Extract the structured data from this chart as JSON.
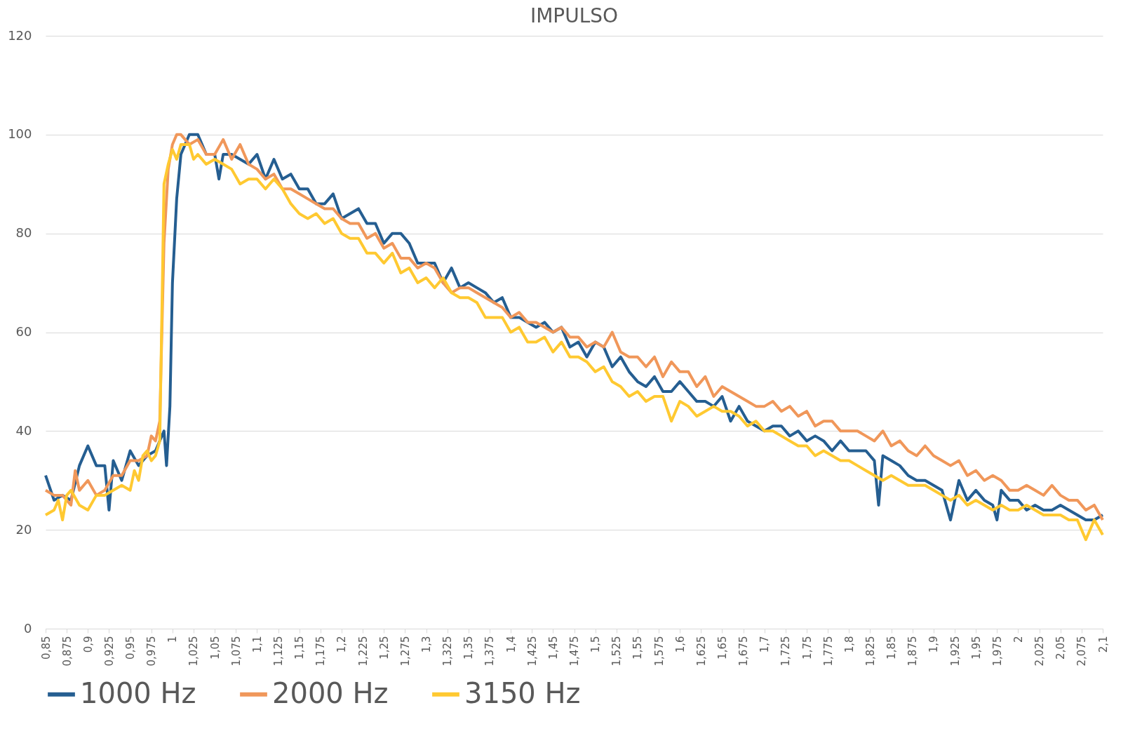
{
  "chart_data": {
    "type": "line",
    "title": "IMPULSO",
    "xlim": [
      0.85,
      2.1
    ],
    "xticks": [
      {
        "value": 0.85,
        "label": "0,85"
      },
      {
        "value": 0.875,
        "label": "0,875"
      },
      {
        "value": 0.9,
        "label": "0,9"
      },
      {
        "value": 0.925,
        "label": "0,925"
      },
      {
        "value": 0.95,
        "label": "0,95"
      },
      {
        "value": 0.975,
        "label": "0,975"
      },
      1,
      {
        "value": 1.025,
        "label": "1,025"
      },
      {
        "value": 1.05,
        "label": "1,05"
      },
      {
        "value": 1.075,
        "label": "1,075"
      },
      {
        "value": 1.1,
        "label": "1,1"
      },
      {
        "value": 1.125,
        "label": "1,125"
      },
      {
        "value": 1.15,
        "label": "1,15"
      },
      {
        "value": 1.175,
        "label": "1,175"
      },
      {
        "value": 1.2,
        "label": "1,2"
      },
      {
        "value": 1.225,
        "label": "1,225"
      },
      {
        "value": 1.25,
        "label": "1,25"
      },
      {
        "value": 1.275,
        "label": "1,275"
      },
      {
        "value": 1.3,
        "label": "1,3"
      },
      {
        "value": 1.325,
        "label": "1,325"
      },
      {
        "value": 1.35,
        "label": "1,35"
      },
      {
        "value": 1.375,
        "label": "1,375"
      },
      {
        "value": 1.4,
        "label": "1,4"
      },
      {
        "value": 1.425,
        "label": "1,425"
      },
      {
        "value": 1.45,
        "label": "1,45"
      },
      {
        "value": 1.475,
        "label": "1,475"
      },
      {
        "value": 1.5,
        "label": "1,5"
      },
      {
        "value": 1.525,
        "label": "1,525"
      },
      {
        "value": 1.55,
        "label": "1,55"
      },
      {
        "value": 1.575,
        "label": "1,575"
      },
      {
        "value": 1.6,
        "label": "1,6"
      },
      {
        "value": 1.625,
        "label": "1,625"
      },
      {
        "value": 1.65,
        "label": "1,65"
      },
      {
        "value": 1.675,
        "label": "1,675"
      },
      {
        "value": 1.7,
        "label": "1,7"
      },
      {
        "value": 1.725,
        "label": "1,725"
      },
      {
        "value": 1.75,
        "label": "1,75"
      },
      {
        "value": 1.775,
        "label": "1,775"
      },
      {
        "value": 1.8,
        "label": "1,8"
      },
      {
        "value": 1.825,
        "label": "1,825"
      },
      {
        "value": 1.85,
        "label": "1,85"
      },
      {
        "value": 1.875,
        "label": "1,875"
      },
      {
        "value": 1.9,
        "label": "1,9"
      },
      {
        "value": 1.925,
        "label": "1,925"
      },
      {
        "value": 1.95,
        "label": "1,95"
      },
      {
        "value": 1.975,
        "label": "1,975"
      },
      2,
      {
        "value": 2.025,
        "label": "2,025"
      },
      {
        "value": 2.05,
        "label": "2,05"
      },
      {
        "value": 2.075,
        "label": "2,075"
      },
      {
        "value": 2.1,
        "label": "2,1"
      }
    ],
    "ylim": [
      0,
      120
    ],
    "yticks": [
      0,
      20,
      40,
      60,
      80,
      100,
      120
    ],
    "grid": "y",
    "legend": "bottom",
    "series": [
      {
        "name": "1000 Hz",
        "color": "#255e91",
        "x": [
          0.85,
          0.86,
          0.87,
          0.88,
          0.89,
          0.9,
          0.91,
          0.92,
          0.925,
          0.93,
          0.94,
          0.95,
          0.96,
          0.97,
          0.98,
          0.99,
          0.993,
          0.997,
          1.0,
          1.005,
          1.01,
          1.02,
          1.03,
          1.04,
          1.05,
          1.055,
          1.06,
          1.07,
          1.08,
          1.09,
          1.1,
          1.11,
          1.12,
          1.13,
          1.14,
          1.15,
          1.16,
          1.17,
          1.18,
          1.19,
          1.2,
          1.21,
          1.22,
          1.23,
          1.24,
          1.25,
          1.26,
          1.27,
          1.28,
          1.29,
          1.3,
          1.31,
          1.32,
          1.33,
          1.34,
          1.35,
          1.36,
          1.37,
          1.38,
          1.39,
          1.4,
          1.41,
          1.42,
          1.43,
          1.44,
          1.45,
          1.46,
          1.47,
          1.48,
          1.49,
          1.5,
          1.51,
          1.52,
          1.53,
          1.54,
          1.55,
          1.56,
          1.57,
          1.58,
          1.59,
          1.6,
          1.61,
          1.62,
          1.63,
          1.64,
          1.65,
          1.66,
          1.67,
          1.68,
          1.69,
          1.7,
          1.71,
          1.72,
          1.73,
          1.74,
          1.75,
          1.76,
          1.77,
          1.78,
          1.79,
          1.8,
          1.81,
          1.82,
          1.83,
          1.835,
          1.84,
          1.85,
          1.86,
          1.87,
          1.88,
          1.89,
          1.9,
          1.91,
          1.92,
          1.93,
          1.94,
          1.95,
          1.96,
          1.97,
          1.975,
          1.98,
          1.99,
          2.0,
          2.01,
          2.02,
          2.03,
          2.04,
          2.05,
          2.06,
          2.07,
          2.08,
          2.09,
          2.1
        ],
        "values": [
          31,
          26,
          27,
          26,
          33,
          37,
          33,
          33,
          24,
          34,
          30,
          36,
          33,
          35,
          36,
          40,
          33,
          45,
          70,
          87,
          96,
          100,
          100,
          96,
          96,
          91,
          96,
          96,
          95,
          94,
          96,
          91,
          95,
          91,
          92,
          89,
          89,
          86,
          86,
          88,
          83,
          84,
          85,
          82,
          82,
          78,
          80,
          80,
          78,
          74,
          74,
          74,
          70,
          73,
          69,
          70,
          69,
          68,
          66,
          67,
          63,
          63,
          62,
          61,
          62,
          60,
          61,
          57,
          58,
          55,
          58,
          57,
          53,
          55,
          52,
          50,
          49,
          51,
          48,
          48,
          50,
          48,
          46,
          46,
          45,
          47,
          42,
          45,
          42,
          41,
          40,
          41,
          41,
          39,
          40,
          38,
          39,
          38,
          36,
          38,
          36,
          36,
          36,
          34,
          25,
          35,
          34,
          33,
          31,
          30,
          30,
          29,
          28,
          22,
          30,
          26,
          28,
          26,
          25,
          22,
          28,
          26,
          26,
          24,
          25,
          24,
          24,
          25,
          24,
          23,
          22,
          22,
          23
        ]
      },
      {
        "name": "2000 Hz",
        "color": "#f0975a",
        "x": [
          0.85,
          0.86,
          0.87,
          0.88,
          0.885,
          0.89,
          0.9,
          0.91,
          0.92,
          0.93,
          0.94,
          0.95,
          0.96,
          0.97,
          0.975,
          0.98,
          0.985,
          0.99,
          0.995,
          1.0,
          1.005,
          1.01,
          1.02,
          1.03,
          1.04,
          1.05,
          1.06,
          1.07,
          1.08,
          1.09,
          1.1,
          1.11,
          1.12,
          1.13,
          1.14,
          1.15,
          1.16,
          1.17,
          1.18,
          1.19,
          1.2,
          1.21,
          1.22,
          1.23,
          1.24,
          1.25,
          1.26,
          1.27,
          1.28,
          1.29,
          1.3,
          1.31,
          1.32,
          1.33,
          1.34,
          1.35,
          1.36,
          1.37,
          1.38,
          1.39,
          1.4,
          1.41,
          1.42,
          1.43,
          1.44,
          1.45,
          1.46,
          1.47,
          1.48,
          1.49,
          1.5,
          1.51,
          1.52,
          1.53,
          1.54,
          1.55,
          1.56,
          1.57,
          1.58,
          1.59,
          1.6,
          1.61,
          1.62,
          1.63,
          1.64,
          1.65,
          1.66,
          1.67,
          1.68,
          1.69,
          1.7,
          1.71,
          1.72,
          1.73,
          1.74,
          1.75,
          1.76,
          1.77,
          1.78,
          1.79,
          1.8,
          1.81,
          1.82,
          1.83,
          1.84,
          1.85,
          1.86,
          1.87,
          1.88,
          1.89,
          1.9,
          1.91,
          1.92,
          1.93,
          1.94,
          1.95,
          1.96,
          1.97,
          1.98,
          1.99,
          2.0,
          2.01,
          2.02,
          2.03,
          2.04,
          2.05,
          2.06,
          2.07,
          2.08,
          2.09,
          2.1
        ],
        "values": [
          28,
          27,
          27,
          25,
          32,
          28,
          30,
          27,
          28,
          31,
          31,
          34,
          34,
          35,
          39,
          38,
          42,
          78,
          93,
          98,
          100,
          100,
          98,
          99,
          96,
          96,
          99,
          95,
          98,
          94,
          93,
          91,
          92,
          89,
          89,
          88,
          87,
          86,
          85,
          85,
          83,
          82,
          82,
          79,
          80,
          77,
          78,
          75,
          75,
          73,
          74,
          73,
          70,
          68,
          69,
          69,
          68,
          67,
          66,
          65,
          63,
          64,
          62,
          62,
          61,
          60,
          61,
          59,
          59,
          57,
          58,
          57,
          60,
          56,
          55,
          55,
          53,
          55,
          51,
          54,
          52,
          52,
          49,
          51,
          47,
          49,
          48,
          47,
          46,
          45,
          45,
          46,
          44,
          45,
          43,
          44,
          41,
          42,
          42,
          40,
          40,
          40,
          39,
          38,
          40,
          37,
          38,
          36,
          35,
          37,
          35,
          34,
          33,
          34,
          31,
          32,
          30,
          31,
          30,
          28,
          28,
          29,
          28,
          27,
          29,
          27,
          26,
          26,
          24,
          25,
          22
        ]
      },
      {
        "name": "3150 Hz",
        "color": "#ffc931",
        "x": [
          0.85,
          0.86,
          0.865,
          0.87,
          0.875,
          0.88,
          0.89,
          0.9,
          0.91,
          0.92,
          0.93,
          0.94,
          0.95,
          0.955,
          0.96,
          0.965,
          0.97,
          0.975,
          0.98,
          0.985,
          0.99,
          0.995,
          1.0,
          1.005,
          1.01,
          1.02,
          1.025,
          1.03,
          1.04,
          1.05,
          1.06,
          1.07,
          1.08,
          1.09,
          1.1,
          1.11,
          1.12,
          1.13,
          1.14,
          1.15,
          1.16,
          1.17,
          1.18,
          1.19,
          1.2,
          1.21,
          1.22,
          1.23,
          1.24,
          1.25,
          1.26,
          1.27,
          1.28,
          1.29,
          1.3,
          1.31,
          1.32,
          1.33,
          1.34,
          1.35,
          1.36,
          1.37,
          1.38,
          1.39,
          1.4,
          1.41,
          1.42,
          1.43,
          1.44,
          1.45,
          1.46,
          1.47,
          1.48,
          1.49,
          1.5,
          1.51,
          1.52,
          1.53,
          1.54,
          1.55,
          1.56,
          1.57,
          1.58,
          1.59,
          1.6,
          1.61,
          1.62,
          1.63,
          1.64,
          1.65,
          1.66,
          1.67,
          1.68,
          1.69,
          1.7,
          1.71,
          1.72,
          1.73,
          1.74,
          1.75,
          1.76,
          1.77,
          1.78,
          1.79,
          1.8,
          1.81,
          1.82,
          1.83,
          1.84,
          1.85,
          1.86,
          1.87,
          1.88,
          1.89,
          1.9,
          1.91,
          1.92,
          1.93,
          1.94,
          1.95,
          1.96,
          1.97,
          1.98,
          1.99,
          2.0,
          2.01,
          2.02,
          2.03,
          2.04,
          2.05,
          2.06,
          2.07,
          2.08,
          2.09,
          2.1
        ],
        "values": [
          23,
          24,
          26,
          22,
          27,
          28,
          25,
          24,
          27,
          27,
          28,
          29,
          28,
          32,
          30,
          35,
          36,
          34,
          35,
          38,
          90,
          94,
          97,
          95,
          98,
          98,
          95,
          96,
          94,
          95,
          94,
          93,
          90,
          91,
          91,
          89,
          91,
          89,
          86,
          84,
          83,
          84,
          82,
          83,
          80,
          79,
          79,
          76,
          76,
          74,
          76,
          72,
          73,
          70,
          71,
          69,
          71,
          68,
          67,
          67,
          66,
          63,
          63,
          63,
          60,
          61,
          58,
          58,
          59,
          56,
          58,
          55,
          55,
          54,
          52,
          53,
          50,
          49,
          47,
          48,
          46,
          47,
          47,
          42,
          46,
          45,
          43,
          44,
          45,
          44,
          44,
          43,
          41,
          42,
          40,
          40,
          39,
          38,
          37,
          37,
          35,
          36,
          35,
          34,
          34,
          33,
          32,
          31,
          30,
          31,
          30,
          29,
          29,
          29,
          28,
          27,
          26,
          27,
          25,
          26,
          25,
          24,
          25,
          24,
          24,
          25,
          24,
          23,
          23,
          23,
          22,
          22,
          18,
          22,
          19
        ]
      }
    ]
  }
}
